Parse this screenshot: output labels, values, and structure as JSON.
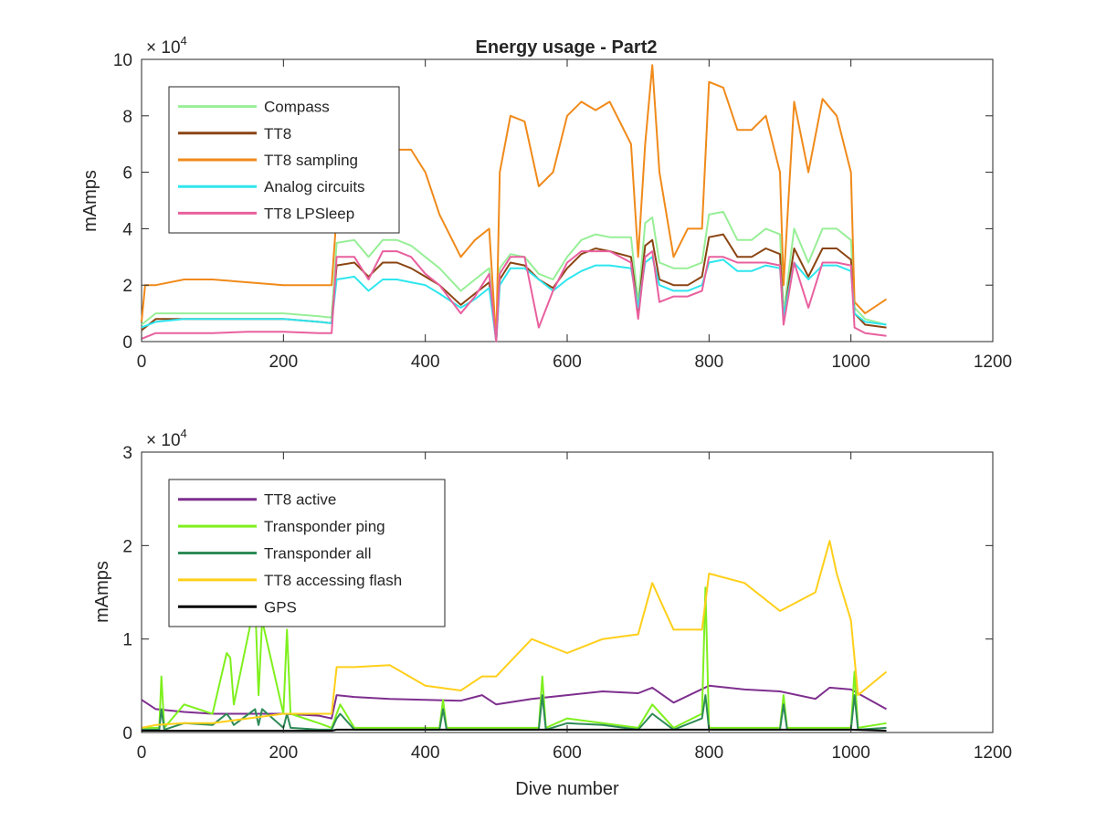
{
  "chart_data": [
    {
      "type": "line",
      "title": "Energy usage - Part2",
      "xlabel": "",
      "ylabel": "mAmps",
      "xlim": [
        0,
        1200
      ],
      "ylim": [
        0,
        100000
      ],
      "y_exponent": {
        "base": "× 10",
        "power": "4"
      },
      "xticks": [
        "0",
        "200",
        "400",
        "600",
        "800",
        "1000",
        "1200"
      ],
      "yticks": [
        "0",
        "2",
        "4",
        "6",
        "8",
        "10"
      ],
      "grid": false,
      "legend_position": "top-left",
      "series": [
        {
          "name": "Compass",
          "color": "#98ef98",
          "x": [
            0,
            20,
            60,
            100,
            150,
            200,
            250,
            268,
            275,
            300,
            320,
            340,
            360,
            380,
            400,
            420,
            450,
            470,
            490,
            500,
            505,
            520,
            540,
            560,
            580,
            600,
            620,
            640,
            660,
            690,
            700,
            710,
            720,
            730,
            750,
            770,
            790,
            800,
            820,
            840,
            860,
            880,
            900,
            905,
            920,
            940,
            960,
            980,
            1000,
            1005,
            1020,
            1050
          ],
          "values": [
            6000,
            10000,
            10000,
            10000,
            10000,
            10000,
            9000,
            8500,
            35000,
            36000,
            30000,
            36000,
            36000,
            34000,
            30000,
            26000,
            18000,
            22000,
            26000,
            0,
            26000,
            31000,
            30000,
            24000,
            22000,
            30000,
            36000,
            38000,
            37000,
            37000,
            14000,
            42000,
            44000,
            28000,
            26000,
            26000,
            28000,
            45000,
            46000,
            36000,
            36000,
            40000,
            38000,
            10000,
            40000,
            28000,
            40000,
            40000,
            36000,
            12000,
            8000,
            6000
          ]
        },
        {
          "name": "TT8",
          "color": "#8b4513",
          "x": [
            0,
            20,
            60,
            100,
            150,
            200,
            250,
            268,
            275,
            300,
            320,
            340,
            360,
            380,
            400,
            420,
            450,
            470,
            490,
            500,
            505,
            520,
            540,
            560,
            580,
            600,
            620,
            640,
            660,
            690,
            700,
            710,
            720,
            730,
            750,
            770,
            790,
            800,
            820,
            840,
            860,
            880,
            900,
            905,
            920,
            940,
            960,
            980,
            1000,
            1005,
            1020,
            1050
          ],
          "values": [
            4000,
            8000,
            8000,
            8000,
            8000,
            8000,
            7000,
            6500,
            27000,
            28000,
            23000,
            28000,
            28000,
            26000,
            23000,
            20000,
            13000,
            17000,
            21000,
            0,
            22000,
            28000,
            27000,
            22000,
            19000,
            26000,
            31000,
            33000,
            32000,
            30000,
            11000,
            34000,
            36000,
            22000,
            20000,
            20000,
            23000,
            37000,
            38000,
            30000,
            30000,
            33000,
            31000,
            8000,
            33000,
            23000,
            33000,
            33000,
            29000,
            10000,
            6000,
            5000
          ]
        },
        {
          "name": "TT8 sampling",
          "color": "#f08a1a",
          "x": [
            0,
            5,
            20,
            60,
            100,
            150,
            200,
            250,
            268,
            275,
            300,
            320,
            340,
            360,
            380,
            400,
            420,
            450,
            470,
            490,
            500,
            505,
            520,
            540,
            560,
            580,
            600,
            620,
            640,
            660,
            690,
            700,
            710,
            720,
            730,
            750,
            770,
            790,
            800,
            820,
            840,
            860,
            880,
            900,
            905,
            920,
            940,
            960,
            980,
            1000,
            1005,
            1020,
            1050
          ],
          "values": [
            7000,
            20000,
            20000,
            22000,
            22000,
            21000,
            20000,
            20000,
            20000,
            45000,
            50000,
            45000,
            64000,
            68000,
            68000,
            60000,
            45000,
            30000,
            36000,
            40000,
            0,
            60000,
            80000,
            78000,
            55000,
            60000,
            80000,
            85000,
            82000,
            85000,
            70000,
            30000,
            70000,
            98000,
            60000,
            30000,
            40000,
            40000,
            92000,
            90000,
            75000,
            75000,
            80000,
            60000,
            20000,
            85000,
            60000,
            86000,
            80000,
            60000,
            14000,
            10000,
            15000
          ]
        },
        {
          "name": "Analog circuits",
          "color": "#2ee6ee",
          "x": [
            0,
            20,
            60,
            100,
            150,
            200,
            250,
            268,
            275,
            300,
            320,
            340,
            360,
            380,
            400,
            420,
            450,
            470,
            490,
            500,
            505,
            520,
            540,
            560,
            580,
            600,
            620,
            640,
            660,
            690,
            700,
            710,
            720,
            730,
            750,
            770,
            790,
            800,
            820,
            840,
            860,
            880,
            900,
            905,
            920,
            940,
            960,
            980,
            1000,
            1005,
            1020,
            1050
          ],
          "values": [
            5000,
            7000,
            8000,
            8000,
            8000,
            8000,
            7000,
            6500,
            22000,
            23000,
            18000,
            22000,
            22000,
            21000,
            20000,
            17000,
            12000,
            15000,
            19000,
            0,
            20000,
            26000,
            26000,
            22000,
            18000,
            22000,
            25000,
            27000,
            27000,
            26000,
            12000,
            28000,
            30000,
            20000,
            18000,
            18000,
            20000,
            28000,
            29000,
            25000,
            25000,
            27000,
            26000,
            9000,
            28000,
            22000,
            27000,
            27000,
            25000,
            10000,
            7000,
            6000
          ]
        },
        {
          "name": "TT8 LPSleep",
          "color": "#e8609e",
          "x": [
            0,
            20,
            60,
            100,
            150,
            200,
            250,
            268,
            275,
            300,
            320,
            340,
            360,
            380,
            400,
            420,
            450,
            470,
            490,
            500,
            505,
            520,
            540,
            560,
            580,
            600,
            620,
            640,
            660,
            690,
            700,
            710,
            720,
            730,
            750,
            770,
            790,
            800,
            820,
            840,
            860,
            880,
            900,
            905,
            920,
            940,
            960,
            980,
            1000,
            1005,
            1020,
            1050
          ],
          "values": [
            1000,
            3000,
            3000,
            3000,
            3500,
            3500,
            3000,
            3000,
            30000,
            30000,
            22000,
            32000,
            32000,
            30000,
            24000,
            20000,
            10000,
            16000,
            24000,
            0,
            24000,
            30000,
            30000,
            5000,
            18000,
            28000,
            32000,
            32000,
            32000,
            28000,
            8000,
            30000,
            32000,
            14000,
            16000,
            16000,
            18000,
            30000,
            30000,
            28000,
            28000,
            28000,
            27000,
            6000,
            28000,
            12000,
            28000,
            28000,
            27000,
            5000,
            3000,
            2000
          ]
        }
      ]
    },
    {
      "type": "line",
      "title": "",
      "xlabel": "Dive number",
      "ylabel": "mAmps",
      "xlim": [
        0,
        1200
      ],
      "ylim": [
        0,
        30000
      ],
      "y_exponent": {
        "base": "× 10",
        "power": "4"
      },
      "xticks": [
        "0",
        "200",
        "400",
        "600",
        "800",
        "1000",
        "1200"
      ],
      "yticks": [
        "0",
        "1",
        "2",
        "3"
      ],
      "grid": false,
      "legend_position": "top-left",
      "series": [
        {
          "name": "TT8 active",
          "color": "#7e2f8e",
          "x": [
            0,
            20,
            60,
            100,
            150,
            200,
            250,
            268,
            275,
            300,
            350,
            400,
            450,
            480,
            500,
            550,
            600,
            650,
            700,
            720,
            750,
            800,
            850,
            900,
            950,
            970,
            1000,
            1050
          ],
          "values": [
            3500,
            2500,
            2200,
            2000,
            2000,
            2000,
            1800,
            1500,
            4000,
            3800,
            3600,
            3500,
            3400,
            4000,
            3000,
            3600,
            4000,
            4400,
            4200,
            4800,
            3200,
            5000,
            4600,
            4400,
            3600,
            4800,
            4600,
            2500
          ]
        },
        {
          "name": "Transponder ping",
          "color": "#7ff01e",
          "x": [
            0,
            25,
            28,
            32,
            60,
            100,
            120,
            125,
            130,
            160,
            165,
            170,
            200,
            205,
            210,
            250,
            268,
            275,
            280,
            300,
            350,
            400,
            420,
            425,
            430,
            500,
            560,
            565,
            570,
            600,
            650,
            700,
            720,
            750,
            790,
            795,
            800,
            850,
            900,
            905,
            910,
            950,
            1000,
            1005,
            1010,
            1050
          ],
          "values": [
            500,
            500,
            6000,
            500,
            3000,
            2000,
            8500,
            8000,
            3000,
            14000,
            4000,
            12000,
            2000,
            11000,
            2000,
            1000,
            500,
            2000,
            3000,
            500,
            500,
            500,
            500,
            3500,
            500,
            500,
            500,
            6000,
            500,
            1500,
            1000,
            500,
            3000,
            500,
            2000,
            15500,
            500,
            500,
            500,
            4000,
            500,
            500,
            500,
            6500,
            500,
            1000
          ]
        },
        {
          "name": "Transponder all",
          "color": "#2e8b57",
          "x": [
            0,
            25,
            28,
            32,
            60,
            100,
            120,
            125,
            130,
            160,
            165,
            170,
            200,
            205,
            210,
            250,
            268,
            275,
            280,
            300,
            350,
            400,
            420,
            425,
            430,
            500,
            560,
            565,
            570,
            600,
            650,
            700,
            720,
            750,
            790,
            795,
            800,
            850,
            900,
            905,
            910,
            950,
            1000,
            1005,
            1010,
            1050
          ],
          "values": [
            300,
            300,
            2500,
            300,
            1000,
            800,
            2000,
            1500,
            800,
            2500,
            800,
            2500,
            500,
            2000,
            500,
            300,
            300,
            1500,
            2000,
            300,
            300,
            300,
            300,
            2500,
            300,
            300,
            300,
            4000,
            300,
            1000,
            800,
            300,
            2000,
            300,
            1500,
            4000,
            300,
            300,
            300,
            3000,
            300,
            300,
            300,
            4000,
            300,
            500
          ]
        },
        {
          "name": "TT8 accessing flash",
          "color": "#ffcf1a",
          "x": [
            0,
            20,
            60,
            100,
            150,
            200,
            250,
            268,
            275,
            300,
            350,
            400,
            450,
            480,
            500,
            550,
            600,
            650,
            700,
            720,
            750,
            790,
            800,
            850,
            900,
            950,
            970,
            980,
            1000,
            1010,
            1050
          ],
          "values": [
            500,
            800,
            1000,
            1000,
            1500,
            2000,
            2000,
            2000,
            7000,
            7000,
            7200,
            5000,
            4500,
            6000,
            6000,
            10000,
            8500,
            10000,
            10500,
            16000,
            11000,
            11000,
            17000,
            16000,
            13000,
            15000,
            20500,
            17000,
            12000,
            4000,
            6500
          ]
        },
        {
          "name": "GPS",
          "color": "#000000",
          "x": [
            0,
            100,
            200,
            268,
            275,
            300,
            400,
            500,
            600,
            700,
            800,
            900,
            1000,
            1050
          ],
          "values": [
            200,
            200,
            200,
            200,
            300,
            300,
            300,
            300,
            300,
            300,
            300,
            300,
            300,
            200
          ]
        }
      ]
    }
  ]
}
